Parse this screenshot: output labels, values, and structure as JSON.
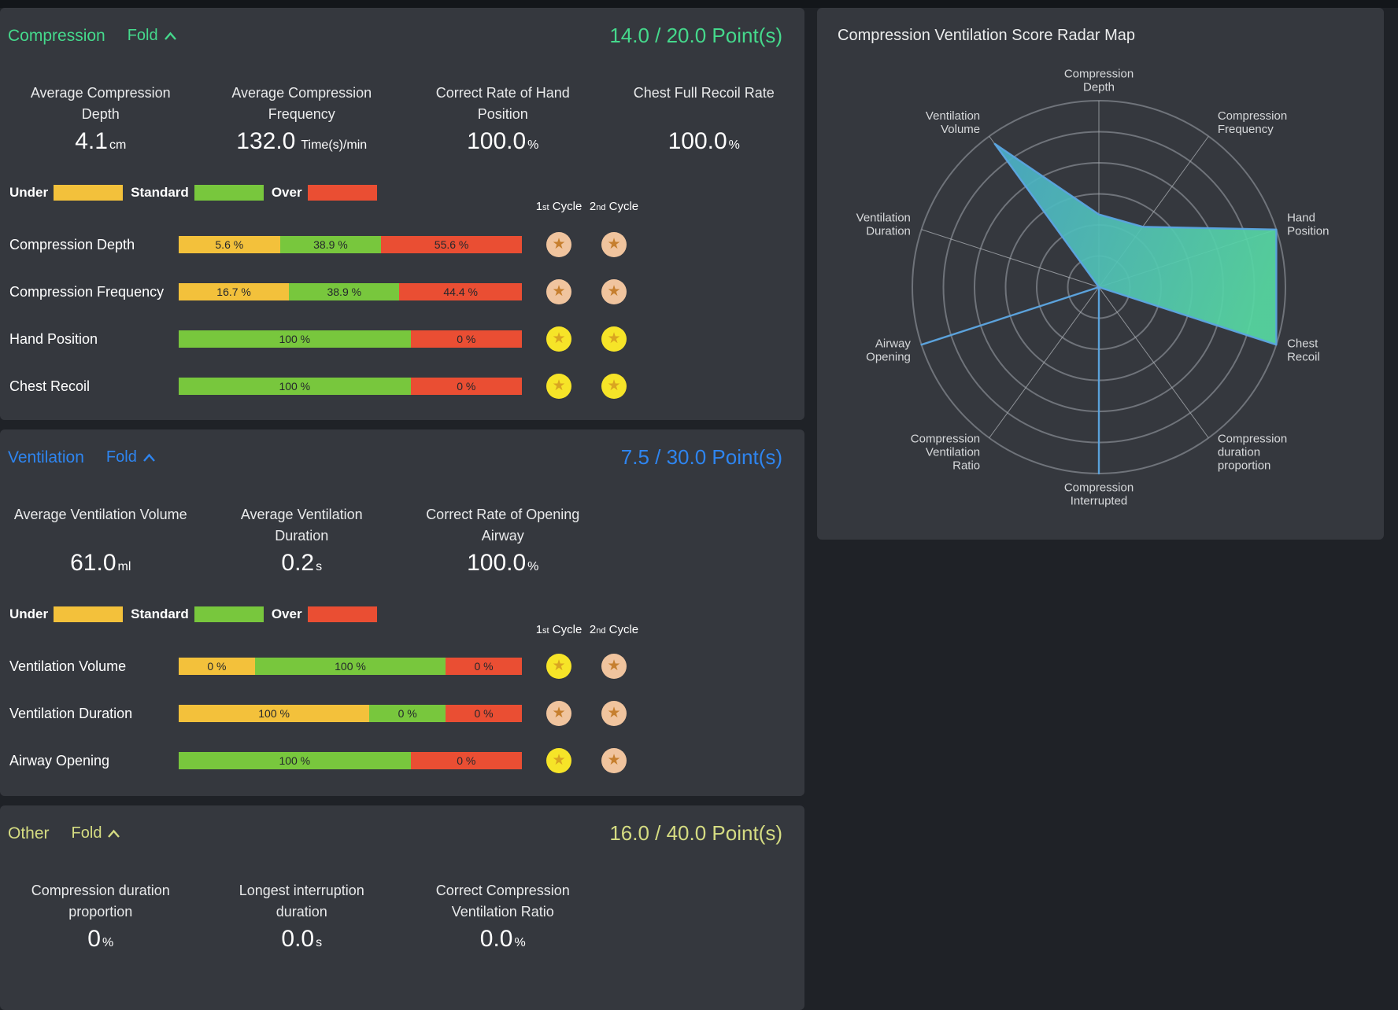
{
  "colors": {
    "page_bg": "#1f2227",
    "top_strip": "#13161a",
    "panel_bg": "#35383e",
    "compression_accent": "#45d98c",
    "ventilation_accent": "#2e85f0",
    "other_accent": "#d5dc82",
    "bar_under": "#f3c13b",
    "bar_standard": "#78c73d",
    "bar_over": "#ea4e33",
    "bar_text": "#24272c",
    "medal_gold_circle": "#f6e428",
    "medal_gold_star": "#d9a520",
    "medal_bronze_circle": "#f0c49e",
    "medal_bronze_star": "#c67f2f",
    "radar_ring": "#757a81",
    "radar_axis": "#aeb2b7",
    "radar_stroke": "#5ba4e0",
    "radar_fill_start": "#48a4d1",
    "radar_fill_end": "#57d8a2",
    "radar_label": "#d7d9db"
  },
  "legend": [
    {
      "label": "Under",
      "type": "under"
    },
    {
      "label": "Standard",
      "type": "standard"
    },
    {
      "label": "Over",
      "type": "over"
    }
  ],
  "cycle_headers": [
    {
      "num": "1",
      "ord": "st",
      "rest": "Cycle"
    },
    {
      "num": "2",
      "ord": "nd",
      "rest": "Cycle"
    }
  ],
  "panels": {
    "compression": {
      "title": "Compression",
      "fold_label": "Fold",
      "points": "14.0 / 20.0 Point(s)",
      "stats": [
        {
          "label_lines": [
            "Average Compression",
            "Depth"
          ],
          "value": "4.1",
          "unit": "cm"
        },
        {
          "label_lines": [
            "Average Compression",
            "Frequency"
          ],
          "value": "132.0",
          "unit": "Time(s)/min",
          "wide_unit": true
        },
        {
          "label_lines": [
            "Correct Rate of Hand",
            "Position"
          ],
          "value": "100.0",
          "unit": "%"
        },
        {
          "label_lines": [
            "Chest Full Recoil Rate"
          ],
          "value": "100.0",
          "unit": "%"
        }
      ],
      "rows": [
        {
          "label": "Compression Depth",
          "segments": [
            {
              "type": "under",
              "text": "5.6 %",
              "value": 5.6
            },
            {
              "type": "standard",
              "text": "38.9 %",
              "value": 38.9
            },
            {
              "type": "over",
              "text": "55.6 %",
              "value": 55.6
            }
          ],
          "medals": [
            "bronze",
            "bronze"
          ]
        },
        {
          "label": "Compression Frequency",
          "segments": [
            {
              "type": "under",
              "text": "16.7 %",
              "value": 16.7
            },
            {
              "type": "standard",
              "text": "38.9 %",
              "value": 38.9
            },
            {
              "type": "over",
              "text": "44.4 %",
              "value": 44.4
            }
          ],
          "medals": [
            "bronze",
            "bronze"
          ]
        },
        {
          "label": "Hand Position",
          "segments": [
            {
              "type": "standard",
              "text": "100 %",
              "value": 100
            },
            {
              "type": "over",
              "text": "0 %",
              "value": 0
            }
          ],
          "medals": [
            "gold",
            "gold"
          ]
        },
        {
          "label": "Chest Recoil",
          "segments": [
            {
              "type": "standard",
              "text": "100 %",
              "value": 100
            },
            {
              "type": "over",
              "text": "0 %",
              "value": 0
            }
          ],
          "medals": [
            "gold",
            "gold"
          ]
        }
      ]
    },
    "ventilation": {
      "title": "Ventilation",
      "fold_label": "Fold",
      "points": "7.5 / 30.0 Point(s)",
      "stats": [
        {
          "label_lines": [
            "Average Ventilation Volume"
          ],
          "value": "61.0",
          "unit": "ml"
        },
        {
          "label_lines": [
            "Average Ventilation",
            "Duration"
          ],
          "value": "0.2",
          "unit": "s"
        },
        {
          "label_lines": [
            "Correct Rate of Opening",
            "Airway"
          ],
          "value": "100.0",
          "unit": "%"
        }
      ],
      "rows": [
        {
          "label": "Ventilation Volume",
          "segments": [
            {
              "type": "under",
              "text": "0 %",
              "value": 0
            },
            {
              "type": "standard",
              "text": "100 %",
              "value": 100
            },
            {
              "type": "over",
              "text": "0 %",
              "value": 0
            }
          ],
          "medals": [
            "gold",
            "bronze"
          ]
        },
        {
          "label": "Ventilation Duration",
          "segments": [
            {
              "type": "under",
              "text": "100 %",
              "value": 100
            },
            {
              "type": "standard",
              "text": "0 %",
              "value": 0
            },
            {
              "type": "over",
              "text": "0 %",
              "value": 0
            }
          ],
          "medals": [
            "bronze",
            "bronze"
          ]
        },
        {
          "label": "Airway Opening",
          "segments": [
            {
              "type": "standard",
              "text": "100 %",
              "value": 100
            },
            {
              "type": "over",
              "text": "0 %",
              "value": 0
            }
          ],
          "medals": [
            "gold",
            "bronze"
          ]
        }
      ]
    },
    "other": {
      "title": "Other",
      "fold_label": "Fold",
      "points": "16.0 / 40.0 Point(s)",
      "stats": [
        {
          "label_lines": [
            "Compression duration",
            "proportion"
          ],
          "value": "0",
          "unit": "%"
        },
        {
          "label_lines": [
            "Longest interruption",
            "duration"
          ],
          "value": "0.0",
          "unit": "s"
        },
        {
          "label_lines": [
            "Correct Compression",
            "Ventilation Ratio"
          ],
          "value": "0.0",
          "unit": "%"
        }
      ]
    }
  },
  "radar": {
    "title": "Compression Ventilation Score Radar Map",
    "chart_data": {
      "type": "radar",
      "rings": 6,
      "max": 1,
      "indicators": [
        {
          "label_lines": [
            "Compression",
            "Depth"
          ],
          "value": 0.39
        },
        {
          "label_lines": [
            "Compression",
            "Frequency"
          ],
          "value": 0.4
        },
        {
          "label_lines": [
            "Hand",
            "Position"
          ],
          "value": 1.0
        },
        {
          "label_lines": [
            "Chest",
            "Recoil"
          ],
          "value": 1.0
        },
        {
          "label_lines": [
            "Compression",
            "duration",
            "proportion"
          ],
          "value": 0
        },
        {
          "label_lines": [
            "Compression",
            "Interrupted"
          ],
          "value": 1.0
        },
        {
          "label_lines": [
            "Compression",
            "Ventilation",
            "Ratio"
          ],
          "value": 0
        },
        {
          "label_lines": [
            "Airway",
            "Opening"
          ],
          "value": 1.0
        },
        {
          "label_lines": [
            "Ventilation",
            "Duration"
          ],
          "value": 0
        },
        {
          "label_lines": [
            "Ventilation",
            "Volume"
          ],
          "value": 0.95
        }
      ]
    }
  }
}
